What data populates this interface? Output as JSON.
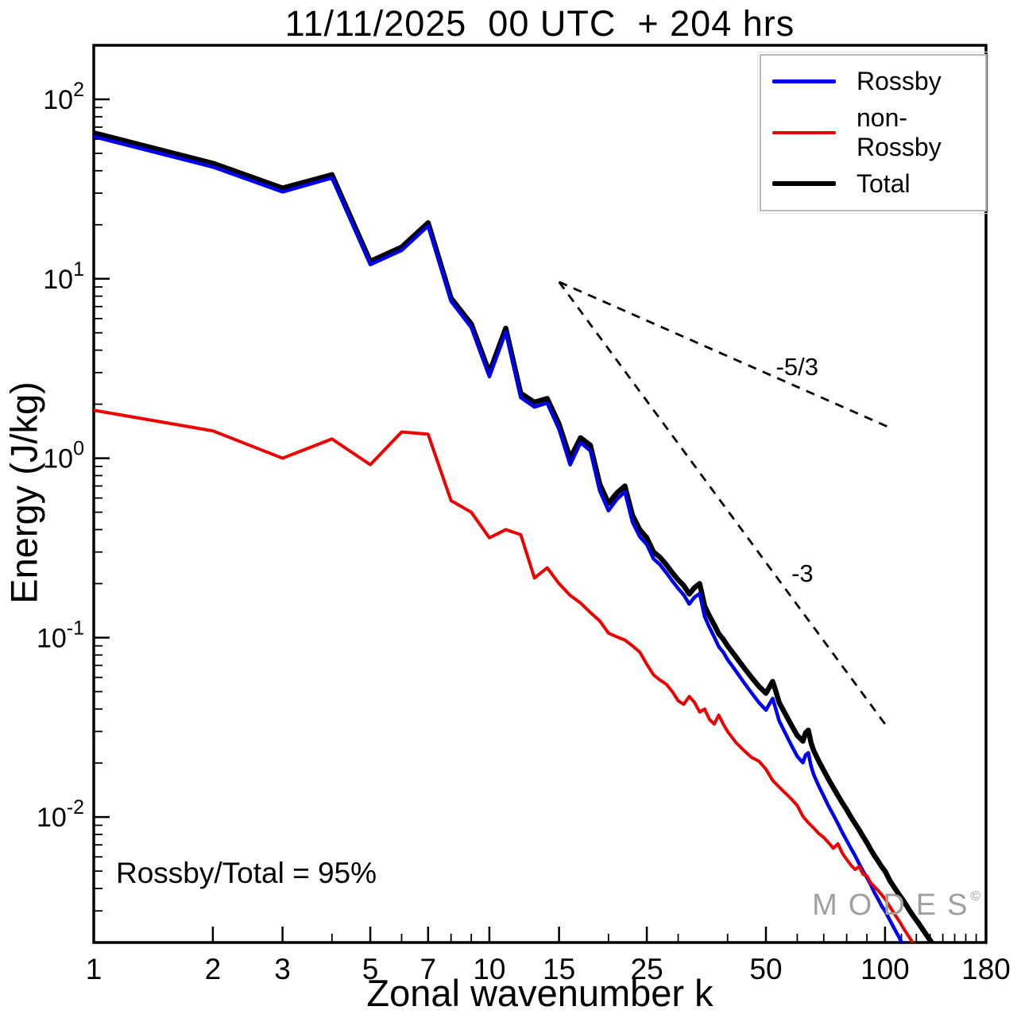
{
  "chart_data": {
    "type": "line",
    "title": "11/11/2025  00 UTC  + 204 hrs",
    "xlabel": "Zonal wavenumber k",
    "ylabel": "Energy (J/kg)",
    "x_scale": "log",
    "y_scale": "log",
    "xlim": [
      1,
      180
    ],
    "ylim": [
      0.002,
      200
    ],
    "grid": false,
    "x_major_ticks": [
      1,
      2,
      3,
      5,
      7,
      10,
      15,
      25,
      50,
      100,
      180
    ],
    "x_minor_ticks": [
      4,
      6,
      8,
      9,
      20,
      30,
      40,
      60,
      70,
      80,
      90,
      110,
      120,
      130,
      140,
      150,
      160,
      170
    ],
    "y_major_tick_exponents": [
      2,
      1,
      0,
      -1,
      -2
    ],
    "frame_color": "#000000",
    "legend": {
      "position": "top-right",
      "entries": [
        {
          "label": "Rossby",
          "color": "#0000ee",
          "thickness": 5
        },
        {
          "label": "non-Rossby",
          "color": "#ee0000",
          "thickness": 4
        },
        {
          "label": "Total",
          "color": "#000000",
          "thickness": 6
        }
      ]
    },
    "series": [
      {
        "name": "Total",
        "color": "#000000",
        "width": 6.5,
        "points": [
          [
            1,
            65
          ],
          [
            2,
            44
          ],
          [
            3,
            32
          ],
          [
            4,
            38
          ],
          [
            5,
            12.5
          ],
          [
            6,
            15
          ],
          [
            7,
            20.5
          ],
          [
            8,
            7.8
          ],
          [
            9,
            5.6
          ],
          [
            10,
            3.0
          ],
          [
            11,
            5.3
          ],
          [
            12,
            2.3
          ],
          [
            13,
            2.05
          ],
          [
            14,
            2.15
          ],
          [
            15,
            1.55
          ],
          [
            16,
            1.0
          ],
          [
            17,
            1.3
          ],
          [
            18,
            1.18
          ],
          [
            19,
            0.72
          ],
          [
            20,
            0.56
          ],
          [
            21,
            0.64
          ],
          [
            22,
            0.7
          ],
          [
            23,
            0.48
          ],
          [
            24,
            0.4
          ],
          [
            25,
            0.36
          ],
          [
            26,
            0.3
          ],
          [
            27,
            0.28
          ],
          [
            28,
            0.255
          ],
          [
            29,
            0.23
          ],
          [
            30,
            0.21
          ],
          [
            31,
            0.195
          ],
          [
            32,
            0.175
          ],
          [
            33,
            0.19
          ],
          [
            34,
            0.2
          ],
          [
            35,
            0.15
          ],
          [
            36,
            0.132
          ],
          [
            37,
            0.118
          ],
          [
            38,
            0.105
          ],
          [
            39,
            0.098
          ],
          [
            40,
            0.09
          ],
          [
            42,
            0.078
          ],
          [
            44,
            0.068
          ],
          [
            46,
            0.06
          ],
          [
            48,
            0.0535
          ],
          [
            50,
            0.049
          ],
          [
            52,
            0.057
          ],
          [
            53,
            0.05
          ],
          [
            54,
            0.0435
          ],
          [
            56,
            0.0375
          ],
          [
            58,
            0.0325
          ],
          [
            60,
            0.0285
          ],
          [
            62,
            0.0265
          ],
          [
            63,
            0.0295
          ],
          [
            64,
            0.0305
          ],
          [
            65,
            0.026
          ],
          [
            66,
            0.0235
          ],
          [
            68,
            0.0205
          ],
          [
            70,
            0.0182
          ],
          [
            72,
            0.0162
          ],
          [
            74,
            0.0146
          ],
          [
            76,
            0.0132
          ],
          [
            78,
            0.012
          ],
          [
            80,
            0.011
          ],
          [
            82,
            0.01
          ],
          [
            84,
            0.0092
          ],
          [
            86,
            0.0085
          ],
          [
            88,
            0.0078
          ],
          [
            90,
            0.0072
          ],
          [
            92,
            0.0066
          ],
          [
            94,
            0.0061
          ],
          [
            96,
            0.0057
          ],
          [
            98,
            0.0053
          ],
          [
            100,
            0.005
          ],
          [
            103,
            0.0044
          ],
          [
            106,
            0.004
          ],
          [
            109,
            0.00365
          ],
          [
            112,
            0.00335
          ],
          [
            115,
            0.00305
          ],
          [
            118,
            0.0028
          ],
          [
            121,
            0.0026
          ],
          [
            124,
            0.0024
          ],
          [
            127,
            0.00222
          ],
          [
            130,
            0.00206
          ],
          [
            133,
            0.00191
          ],
          [
            136,
            0.00178
          ],
          [
            140,
            0.00162
          ],
          [
            144,
            0.00147
          ],
          [
            148,
            0.00134
          ],
          [
            152,
            0.00122
          ],
          [
            156,
            0.00111
          ],
          [
            160,
            0.00101
          ]
        ]
      },
      {
        "name": "Rossby",
        "color": "#0000ee",
        "width": 4.5,
        "points": [
          [
            1,
            62
          ],
          [
            2,
            42
          ],
          [
            3,
            30.5
          ],
          [
            4,
            36.5
          ],
          [
            5,
            12.0
          ],
          [
            6,
            14.4
          ],
          [
            7,
            19.7
          ],
          [
            8,
            7.5
          ],
          [
            9,
            5.35
          ],
          [
            10,
            2.85
          ],
          [
            11,
            5.05
          ],
          [
            12,
            2.18
          ],
          [
            13,
            1.93
          ],
          [
            14,
            2.03
          ],
          [
            15,
            1.45
          ],
          [
            16,
            0.92
          ],
          [
            17,
            1.22
          ],
          [
            18,
            1.1
          ],
          [
            19,
            0.66
          ],
          [
            20,
            0.51
          ],
          [
            21,
            0.59
          ],
          [
            22,
            0.65
          ],
          [
            23,
            0.44
          ],
          [
            24,
            0.365
          ],
          [
            25,
            0.33
          ],
          [
            26,
            0.275
          ],
          [
            27,
            0.255
          ],
          [
            28,
            0.23
          ],
          [
            29,
            0.207
          ],
          [
            30,
            0.188
          ],
          [
            31,
            0.173
          ],
          [
            32,
            0.154
          ],
          [
            33,
            0.168
          ],
          [
            34,
            0.176
          ],
          [
            35,
            0.131
          ],
          [
            36,
            0.114
          ],
          [
            37,
            0.101
          ],
          [
            38,
            0.089
          ],
          [
            39,
            0.083
          ],
          [
            40,
            0.0755
          ],
          [
            42,
            0.065
          ],
          [
            44,
            0.0562
          ],
          [
            46,
            0.0492
          ],
          [
            48,
            0.0435
          ],
          [
            50,
            0.0395
          ],
          [
            52,
            0.0458
          ],
          [
            53,
            0.0398
          ],
          [
            54,
            0.0344
          ],
          [
            56,
            0.0293
          ],
          [
            58,
            0.0251
          ],
          [
            60,
            0.0218
          ],
          [
            62,
            0.0201
          ],
          [
            63,
            0.0222
          ],
          [
            64,
            0.0228
          ],
          [
            65,
            0.0193
          ],
          [
            66,
            0.0173
          ],
          [
            68,
            0.0149
          ],
          [
            70,
            0.0131
          ],
          [
            72,
            0.0115
          ],
          [
            74,
            0.0103
          ],
          [
            76,
            0.0092
          ],
          [
            78,
            0.0082
          ],
          [
            80,
            0.0074
          ],
          [
            82,
            0.0067
          ],
          [
            84,
            0.0061
          ],
          [
            86,
            0.0055
          ],
          [
            88,
            0.005
          ],
          [
            90,
            0.0046
          ],
          [
            92,
            0.0042
          ],
          [
            94,
            0.0038
          ],
          [
            96,
            0.0035
          ],
          [
            98,
            0.0032
          ],
          [
            100,
            0.003
          ],
          [
            103,
            0.00265
          ],
          [
            106,
            0.00235
          ],
          [
            109,
            0.0021
          ],
          [
            112,
            0.00187
          ],
          [
            115,
            0.00167
          ],
          [
            118,
            0.0015
          ],
          [
            121,
            0.00134
          ],
          [
            124,
            0.0012
          ],
          [
            127,
            0.00108
          ],
          [
            130,
            0.00097
          ]
        ]
      },
      {
        "name": "non-Rossby",
        "color": "#ee0000",
        "width": 4,
        "points": [
          [
            1,
            1.85
          ],
          [
            2,
            1.42
          ],
          [
            3,
            1.0
          ],
          [
            4,
            1.28
          ],
          [
            5,
            0.92
          ],
          [
            6,
            1.4
          ],
          [
            7,
            1.36
          ],
          [
            8,
            0.58
          ],
          [
            9,
            0.5
          ],
          [
            10,
            0.36
          ],
          [
            11,
            0.4
          ],
          [
            12,
            0.375
          ],
          [
            13,
            0.215
          ],
          [
            14,
            0.245
          ],
          [
            15,
            0.2
          ],
          [
            16,
            0.172
          ],
          [
            17,
            0.156
          ],
          [
            18,
            0.138
          ],
          [
            19,
            0.124
          ],
          [
            20,
            0.106
          ],
          [
            21,
            0.101
          ],
          [
            22,
            0.097
          ],
          [
            23,
            0.09
          ],
          [
            24,
            0.083
          ],
          [
            25,
            0.071
          ],
          [
            26,
            0.062
          ],
          [
            27,
            0.058
          ],
          [
            28,
            0.055
          ],
          [
            29,
            0.05
          ],
          [
            30,
            0.0445
          ],
          [
            31,
            0.0425
          ],
          [
            32,
            0.047
          ],
          [
            33,
            0.0435
          ],
          [
            34,
            0.0385
          ],
          [
            35,
            0.04
          ],
          [
            36,
            0.035
          ],
          [
            37,
            0.033
          ],
          [
            38,
            0.037
          ],
          [
            39,
            0.033
          ],
          [
            40,
            0.03
          ],
          [
            42,
            0.026
          ],
          [
            44,
            0.0235
          ],
          [
            46,
            0.0215
          ],
          [
            48,
            0.0205
          ],
          [
            50,
            0.0185
          ],
          [
            52,
            0.016
          ],
          [
            54,
            0.0147
          ],
          [
            56,
            0.0136
          ],
          [
            58,
            0.0126
          ],
          [
            60,
            0.0116
          ],
          [
            62,
            0.0101
          ],
          [
            64,
            0.0093
          ],
          [
            66,
            0.0087
          ],
          [
            68,
            0.0081
          ],
          [
            70,
            0.0077
          ],
          [
            72,
            0.0072
          ],
          [
            74,
            0.0067
          ],
          [
            76,
            0.0071
          ],
          [
            78,
            0.0063
          ],
          [
            80,
            0.0058
          ],
          [
            82,
            0.0054
          ],
          [
            84,
            0.0051
          ],
          [
            86,
            0.0053
          ],
          [
            88,
            0.0048
          ],
          [
            90,
            0.0047
          ],
          [
            92,
            0.0043
          ],
          [
            94,
            0.0041
          ],
          [
            96,
            0.0039
          ],
          [
            98,
            0.0037
          ],
          [
            100,
            0.0035
          ],
          [
            103,
            0.00315
          ],
          [
            106,
            0.00285
          ],
          [
            109,
            0.0026
          ],
          [
            112,
            0.00235
          ],
          [
            115,
            0.00215
          ],
          [
            118,
            0.00197
          ],
          [
            121,
            0.0018
          ],
          [
            124,
            0.00165
          ],
          [
            127,
            0.00152
          ],
          [
            130,
            0.0014
          ]
        ]
      }
    ],
    "reference_lines": [
      {
        "label": "-5/3",
        "from": [
          15,
          9.6
        ],
        "to": [
          105,
          1.45
        ],
        "label_at": [
          53,
          2.9
        ]
      },
      {
        "label": "-3",
        "from": [
          15,
          9.6
        ],
        "to": [
          100,
          0.033
        ],
        "label_at": [
          58,
          0.205
        ]
      }
    ],
    "annotations": [
      {
        "text": "Rossby/Total = 95%",
        "at": [
          1.15,
          0.0048
        ]
      }
    ],
    "watermark": {
      "text": "MODES",
      "sup": "©"
    }
  }
}
